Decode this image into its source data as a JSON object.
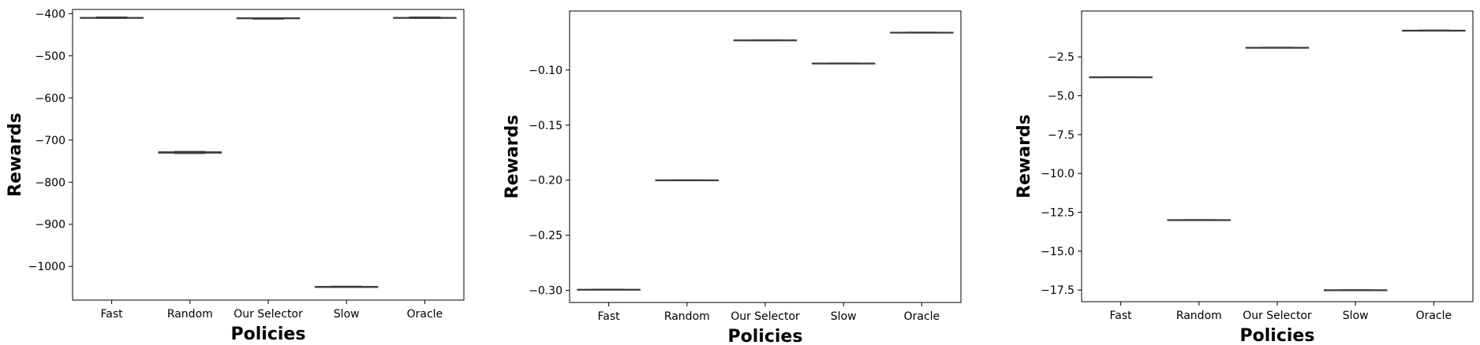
{
  "chart_data": [
    {
      "type": "box",
      "xlabel": "Policies",
      "ylabel": "Rewards",
      "categories": [
        "Fast",
        "Random",
        "Our Selector",
        "Slow",
        "Oracle"
      ],
      "ylim": [
        -1080,
        -390
      ],
      "yticks": [
        -400,
        -500,
        -600,
        -700,
        -800,
        -900,
        -1000
      ],
      "ytick_labels": [
        "−400",
        "−500",
        "−600",
        "−700",
        "−800",
        "−900",
        "−1000"
      ],
      "boxes": [
        {
          "category": "Fast",
          "q1": -411,
          "median": -410,
          "q3": -409,
          "whislo": -411,
          "whishi": -408
        },
        {
          "category": "Random",
          "q1": -731,
          "median": -729,
          "q3": -728,
          "whislo": -732,
          "whishi": -727
        },
        {
          "category": "Our Selector",
          "q1": -412,
          "median": -411,
          "q3": -410,
          "whislo": -413,
          "whishi": -410
        },
        {
          "category": "Slow",
          "q1": -1049,
          "median": -1048,
          "q3": -1048,
          "whislo": -1049,
          "whishi": -1047
        },
        {
          "category": "Oracle",
          "q1": -411,
          "median": -410,
          "q3": -409,
          "whislo": -411,
          "whishi": -408
        }
      ],
      "grid": false
    },
    {
      "type": "box",
      "xlabel": "Policies",
      "ylabel": "Rewards",
      "categories": [
        "Fast",
        "Random",
        "Our Selector",
        "Slow",
        "Oracle"
      ],
      "ylim": [
        -0.311,
        -0.0465
      ],
      "yticks": [
        -0.1,
        -0.15,
        -0.2,
        -0.25,
        -0.3
      ],
      "ytick_labels": [
        "−0.10",
        "−0.15",
        "−0.20",
        "−0.25",
        "−0.30"
      ],
      "boxes": [
        {
          "category": "Fast",
          "q1": -0.2995,
          "median": -0.2993,
          "q3": -0.2991,
          "whislo": -0.2996,
          "whishi": -0.299
        },
        {
          "category": "Random",
          "q1": -0.2002,
          "median": -0.2,
          "q3": -0.1998,
          "whislo": -0.2003,
          "whishi": -0.1997
        },
        {
          "category": "Our Selector",
          "q1": -0.0732,
          "median": -0.073,
          "q3": -0.0728,
          "whislo": -0.0733,
          "whishi": -0.0727
        },
        {
          "category": "Slow",
          "q1": -0.0942,
          "median": -0.094,
          "q3": -0.0938,
          "whislo": -0.0943,
          "whishi": -0.0937
        },
        {
          "category": "Oracle",
          "q1": -0.0662,
          "median": -0.066,
          "q3": -0.0658,
          "whislo": -0.0663,
          "whishi": -0.0657
        }
      ],
      "grid": false
    },
    {
      "type": "box",
      "xlabel": "Policies",
      "ylabel": "Rewards",
      "categories": [
        "Fast",
        "Random",
        "Our Selector",
        "Slow",
        "Oracle"
      ],
      "ylim": [
        -18.25,
        0.45
      ],
      "yticks": [
        -2.5,
        -5.0,
        -7.5,
        -10.0,
        -12.5,
        -15.0,
        -17.5
      ],
      "ytick_labels": [
        "−2.5",
        "−5.0",
        "−7.5",
        "−10.0",
        "−12.5",
        "−15.0",
        "−17.5"
      ],
      "boxes": [
        {
          "category": "Fast",
          "q1": -3.81,
          "median": -3.8,
          "q3": -3.79,
          "whislo": -3.82,
          "whishi": -3.78
        },
        {
          "category": "Random",
          "q1": -13.0,
          "median": -12.99,
          "q3": -12.98,
          "whislo": -13.01,
          "whishi": -12.97
        },
        {
          "category": "Our Selector",
          "q1": -1.91,
          "median": -1.9,
          "q3": -1.89,
          "whislo": -1.92,
          "whishi": -1.88
        },
        {
          "category": "Slow",
          "q1": -17.51,
          "median": -17.5,
          "q3": -17.49,
          "whislo": -17.52,
          "whishi": -17.48
        },
        {
          "category": "Oracle",
          "q1": -0.81,
          "median": -0.8,
          "q3": -0.79,
          "whislo": -0.82,
          "whishi": -0.78
        }
      ],
      "grid": false
    }
  ]
}
